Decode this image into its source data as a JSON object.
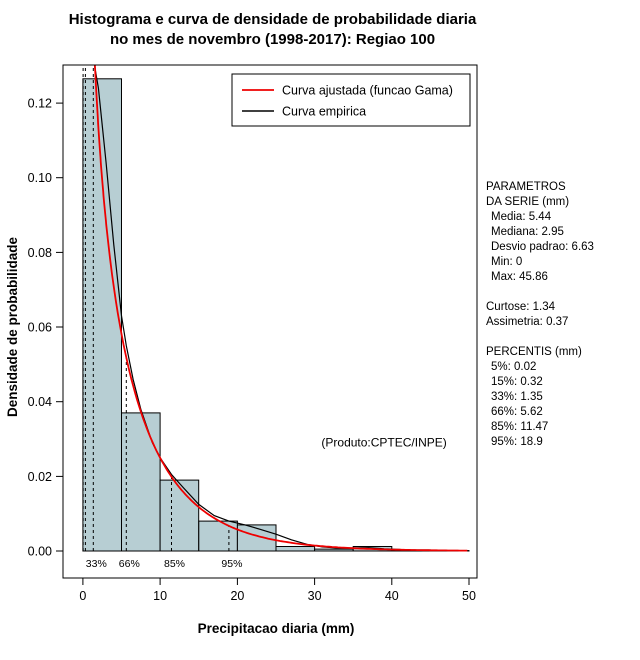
{
  "title": {
    "line1": "Histograma e curva de densidade de probabilidade diaria",
    "line2": "no mes de novembro (1998-2017): Regiao 100"
  },
  "chart_data": {
    "type": "bar",
    "subtype": "histogram_with_density_curves",
    "title": "Histograma e curva de densidade de probabilidade diaria no mes de novembro (1998-2017): Regiao 100",
    "xlabel": "Precipitacao diaria (mm)",
    "ylabel": "Densidade de probabilidade",
    "xlim": [
      0,
      50
    ],
    "ylim": [
      0,
      0.13
    ],
    "grid": false,
    "legend_position": "top-right",
    "x_tick_values": [
      0,
      10,
      20,
      30,
      40,
      50
    ],
    "x_tick_labels": [
      "0",
      "10",
      "20",
      "30",
      "40",
      "50"
    ],
    "y_tick_values": [
      0,
      0.02,
      0.04,
      0.06,
      0.08,
      0.1,
      0.12
    ],
    "y_tick_labels": [
      "0.00",
      "0.02",
      "0.04",
      "0.06",
      "0.08",
      "0.10",
      "0.12"
    ],
    "histogram": {
      "bin_start": 0,
      "bin_width": 5,
      "densities": [
        0.1265,
        0.037,
        0.019,
        0.008,
        0.007,
        0.0012,
        0.0005,
        0.0012,
        0.0003,
        0.0001
      ],
      "fill_color": "#b7ced3",
      "stroke_color": "#000000"
    },
    "gamma_fit": {
      "mean": 5.44,
      "sd": 6.63,
      "color": "#ee0000"
    },
    "empirical_curve": {
      "color": "#000000",
      "points": [
        [
          0,
          0.138
        ],
        [
          0.7,
          0.136
        ],
        [
          1.35,
          0.132
        ],
        [
          2,
          0.124
        ],
        [
          3,
          0.104
        ],
        [
          4,
          0.082
        ],
        [
          5,
          0.063
        ],
        [
          5.62,
          0.055
        ],
        [
          6.5,
          0.046
        ],
        [
          7.5,
          0.038
        ],
        [
          9,
          0.029
        ],
        [
          10,
          0.025
        ],
        [
          11.47,
          0.0205
        ],
        [
          13,
          0.017
        ],
        [
          15,
          0.0125
        ],
        [
          17,
          0.0095
        ],
        [
          18.9,
          0.008
        ],
        [
          21,
          0.007
        ],
        [
          23,
          0.0058
        ],
        [
          25,
          0.0045
        ],
        [
          27,
          0.003
        ],
        [
          29,
          0.0018
        ],
        [
          31,
          0.0011
        ],
        [
          33,
          0.0008
        ],
        [
          35,
          0.0008
        ],
        [
          37,
          0.0009
        ],
        [
          39,
          0.0006
        ],
        [
          41,
          0.0004
        ],
        [
          43,
          0.0002
        ],
        [
          45,
          0.0001
        ],
        [
          47,
          5e-05
        ],
        [
          50,
          2e-05
        ]
      ]
    },
    "percentile_lines": [
      0.02,
      0.32,
      1.35,
      5.62,
      11.47,
      18.9
    ],
    "percentile_labels": [
      {
        "label": "33%",
        "x": 1.35
      },
      {
        "label": "66%",
        "x": 5.62
      },
      {
        "label": "85%",
        "x": 11.47
      },
      {
        "label": "95%",
        "x": 18.9
      }
    ],
    "legend": {
      "items": [
        {
          "label": "Curva ajustada (funcao Gama)",
          "color": "#ee0000"
        },
        {
          "label": "Curva empirica",
          "color": "#000000"
        }
      ]
    },
    "annotation": {
      "text": "(Produto:CPTEC/INPE)",
      "x": 39,
      "y": 0.028
    }
  },
  "stats_panel": {
    "lines": [
      {
        "text": "PARAMETROS"
      },
      {
        "text": "DA SERIE (mm)"
      },
      {
        "text": "Media: 5.44",
        "indent": true
      },
      {
        "text": "Mediana: 2.95",
        "indent": true
      },
      {
        "text": "Desvio padrao: 6.63",
        "indent": true
      },
      {
        "text": "Min: 0",
        "indent": true
      },
      {
        "text": "Max: 45.86",
        "indent": true
      },
      {
        "spacer": true
      },
      {
        "text": "Curtose: 1.34"
      },
      {
        "text": "Assimetria: 0.37"
      },
      {
        "spacer": true
      },
      {
        "text": "PERCENTIS (mm)"
      },
      {
        "text": "5%: 0.02",
        "indent": true
      },
      {
        "text": "15%: 0.32",
        "indent": true
      },
      {
        "text": "33%: 1.35",
        "indent": true
      },
      {
        "text": "66%: 5.62",
        "indent": true
      },
      {
        "text": "85%: 11.47",
        "indent": true
      },
      {
        "text": "95%: 18.9",
        "indent": true
      }
    ]
  }
}
